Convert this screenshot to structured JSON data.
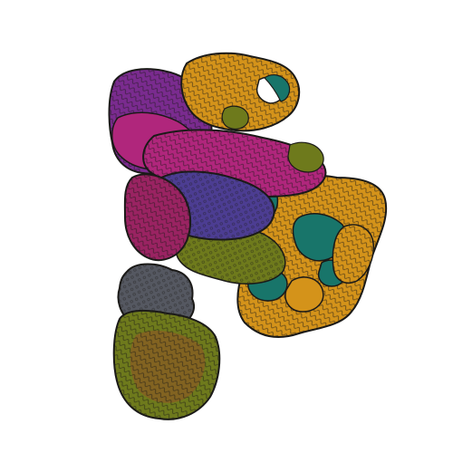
{
  "image": {
    "background": "#ffffff",
    "subject": "molecular-complex-render",
    "palette": {
      "magenta": "#b0267c",
      "purple": "#7a2b8f",
      "indigo": "#4c3d92",
      "teal": "#18756a",
      "gold": "#d4931a",
      "olive": "#6e7a1c",
      "gray": "#555861",
      "brown": "#8a5a24",
      "outline": "#1b1a18"
    }
  }
}
